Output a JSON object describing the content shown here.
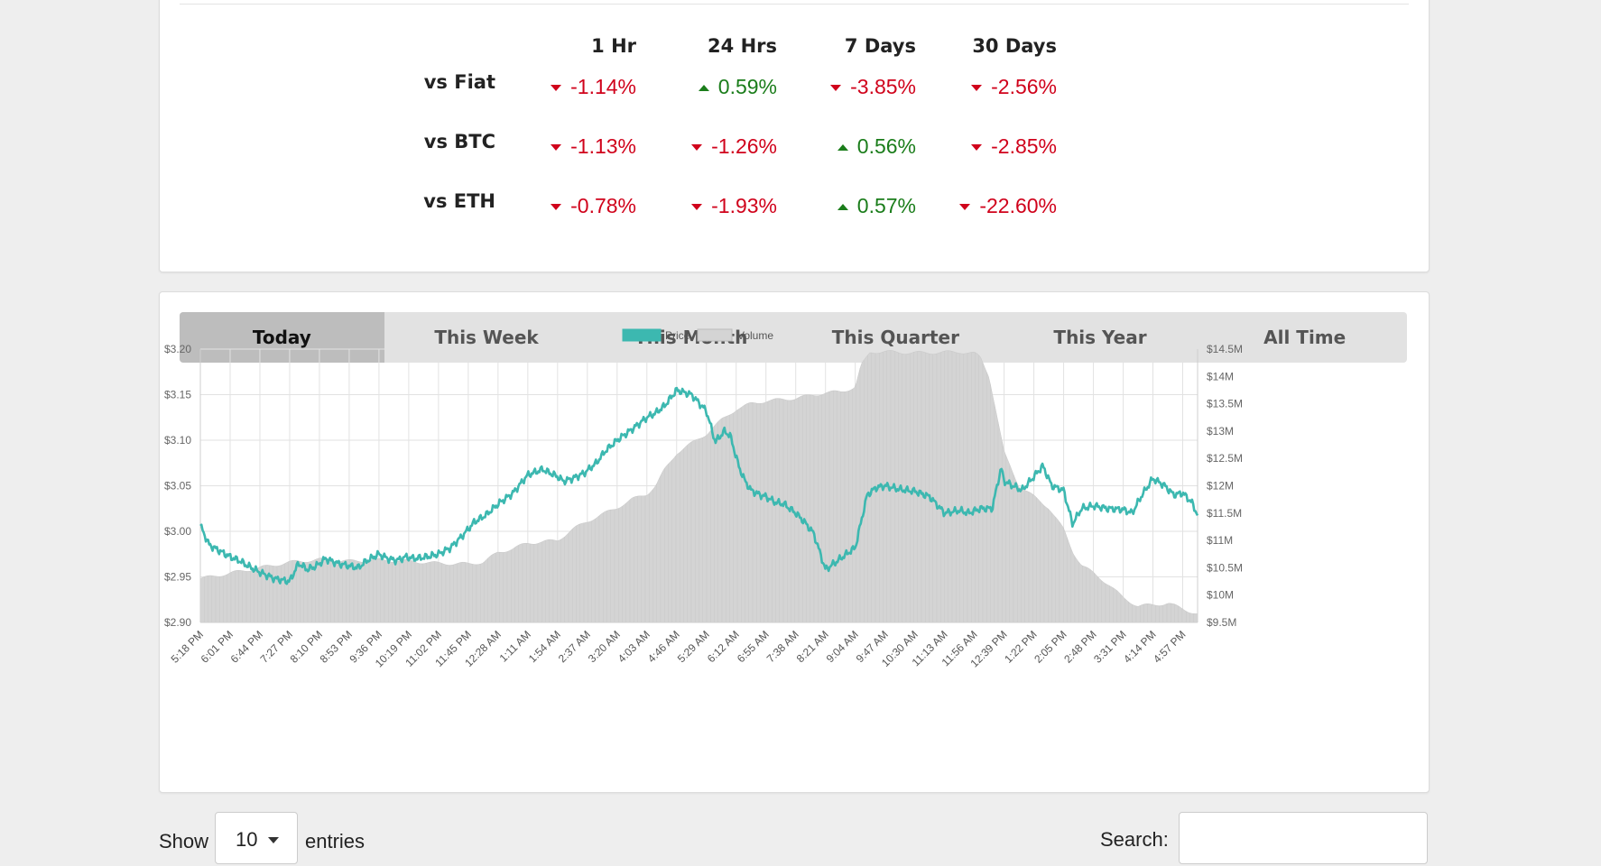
{
  "performance": {
    "columns": [
      "1 Hr",
      "24 Hrs",
      "7 Days",
      "30 Days"
    ],
    "rows": [
      {
        "label": "vs Fiat",
        "values": [
          {
            "text": "-1.14%",
            "dir": "down"
          },
          {
            "text": "0.59%",
            "dir": "up"
          },
          {
            "text": "-3.85%",
            "dir": "down"
          },
          {
            "text": "-2.56%",
            "dir": "down"
          }
        ]
      },
      {
        "label": "vs BTC",
        "values": [
          {
            "text": "-1.13%",
            "dir": "down"
          },
          {
            "text": "-1.26%",
            "dir": "down"
          },
          {
            "text": "0.56%",
            "dir": "up"
          },
          {
            "text": "-2.85%",
            "dir": "down"
          }
        ]
      },
      {
        "label": "vs ETH",
        "values": [
          {
            "text": "-0.78%",
            "dir": "down"
          },
          {
            "text": "-1.93%",
            "dir": "down"
          },
          {
            "text": "0.57%",
            "dir": "up"
          },
          {
            "text": "-22.60%",
            "dir": "down"
          }
        ]
      }
    ],
    "colors": {
      "down": "#d0021b",
      "up": "#1b7d1b"
    }
  },
  "tabs": [
    "Today",
    "This Week",
    "This Month",
    "This Quarter",
    "This Year",
    "All Time"
  ],
  "active_tab": "Today",
  "chart_data": {
    "type": "line",
    "legend": [
      "Price",
      "Volume"
    ],
    "legend_placement": "top-center",
    "grid": true,
    "colors": {
      "price": "#3cb8b0",
      "volume": "#d4d4d4"
    },
    "x_ticks": [
      "5:18 PM",
      "6:01 PM",
      "6:44 PM",
      "7:27 PM",
      "8:10 PM",
      "8:53 PM",
      "9:36 PM",
      "10:19 PM",
      "11:02 PM",
      "11:45 PM",
      "12:28 AM",
      "1:11 AM",
      "1:54 AM",
      "2:37 AM",
      "3:20 AM",
      "4:03 AM",
      "4:46 AM",
      "5:29 AM",
      "6:12 AM",
      "6:55 AM",
      "7:38 AM",
      "8:21 AM",
      "9:04 AM",
      "9:47 AM",
      "10:30 AM",
      "11:13 AM",
      "11:56 AM",
      "12:39 PM",
      "1:22 PM",
      "2:05 PM",
      "2:48 PM",
      "3:31 PM",
      "4:14 PM",
      "4:57 PM"
    ],
    "y_left": {
      "ticks": [
        "$3.20",
        "$3.15",
        "$3.10",
        "$3.05",
        "$3.00",
        "$2.95",
        "$2.90"
      ],
      "min": 2.9,
      "max": 3.2
    },
    "y_right": {
      "ticks": [
        "$14.5M",
        "$14M",
        "$13.5M",
        "$13M",
        "$12.5M",
        "$12M",
        "$11.5M",
        "$11M",
        "$10.5M",
        "$10M",
        "$9.5M"
      ],
      "min": 9.5,
      "max": 14.5
    },
    "series": [
      {
        "name": "Price",
        "axis": "left",
        "t": [
          0,
          0.3,
          1,
          1.3,
          1.6,
          2,
          2.5,
          3,
          3.3,
          3.6,
          3.9,
          4.2,
          4.6,
          5,
          5.3,
          5.6,
          6,
          6.3,
          6.6,
          6.9,
          7.2,
          7.6,
          8,
          8.4,
          8.8,
          9.2,
          9.6,
          10,
          10.5,
          11,
          11.5,
          12,
          12.2,
          12.5,
          12.9,
          13.3,
          13.6,
          14,
          14.5,
          15,
          15.3,
          15.6,
          16,
          16.5,
          17,
          17.3,
          17.6,
          17.8,
          18.1,
          18.3,
          18.5,
          18.8,
          19,
          19.3,
          19.6,
          20,
          20.3,
          20.6,
          21,
          21.3,
          21.7,
          22,
          22.4,
          22.7,
          23,
          23.5,
          24,
          24.5,
          25,
          25.5,
          25.8,
          26.2,
          26.6,
          26.9,
          27,
          27.3,
          27.6,
          28,
          28.3,
          28.6,
          29,
          29.3,
          29.6,
          30,
          30.5,
          31,
          31.3,
          31.6,
          32,
          32.4,
          32.7,
          33,
          33.3,
          33.5
        ],
        "values": [
          3.006,
          2.985,
          2.972,
          2.968,
          2.962,
          2.955,
          2.948,
          2.945,
          2.965,
          2.958,
          2.962,
          2.97,
          2.965,
          2.962,
          2.96,
          2.968,
          2.975,
          2.97,
          2.968,
          2.972,
          2.97,
          2.972,
          2.975,
          2.982,
          2.995,
          3.01,
          3.018,
          3.03,
          3.042,
          3.062,
          3.068,
          3.06,
          3.055,
          3.058,
          3.064,
          3.075,
          3.088,
          3.1,
          3.112,
          3.125,
          3.13,
          3.138,
          3.155,
          3.15,
          3.132,
          3.098,
          3.11,
          3.105,
          3.07,
          3.055,
          3.045,
          3.04,
          3.038,
          3.032,
          3.03,
          3.02,
          3.01,
          2.998,
          2.958,
          2.965,
          2.975,
          2.982,
          3.04,
          3.048,
          3.05,
          3.046,
          3.044,
          3.038,
          3.02,
          3.023,
          3.02,
          3.025,
          3.025,
          3.07,
          3.055,
          3.05,
          3.045,
          3.06,
          3.072,
          3.05,
          3.045,
          3.008,
          3.025,
          3.028,
          3.025,
          3.024,
          3.02,
          3.038,
          3.058,
          3.05,
          3.04,
          3.042,
          3.032,
          3.018
        ]
      },
      {
        "name": "Volume",
        "axis": "right",
        "t": [
          0,
          0.5,
          1,
          2,
          3,
          4,
          5,
          6,
          7,
          8,
          9,
          9.5,
          10,
          10.5,
          11,
          12,
          12.5,
          13,
          14,
          14.5,
          15,
          15.3,
          15.6,
          16,
          17,
          17.5,
          18,
          18.5,
          19,
          20,
          20.5,
          21,
          21.5,
          22,
          22.2,
          22.5,
          23,
          24,
          25,
          25.5,
          26,
          26.2,
          26.5,
          27,
          27.5,
          28,
          28.5,
          29,
          29.3,
          29.6,
          30,
          30.5,
          31,
          31.5,
          32,
          32.5,
          33,
          33.5
        ],
        "values": [
          10.3,
          10.35,
          10.4,
          10.5,
          10.6,
          10.65,
          10.62,
          10.64,
          10.62,
          10.58,
          10.57,
          10.6,
          10.78,
          10.85,
          10.95,
          11.0,
          11.2,
          11.35,
          11.6,
          11.75,
          11.85,
          12.0,
          12.3,
          12.6,
          12.95,
          13.2,
          13.4,
          13.5,
          13.55,
          13.6,
          13.65,
          13.7,
          13.72,
          13.8,
          14.2,
          14.45,
          14.45,
          14.43,
          14.44,
          14.45,
          14.42,
          14.35,
          14.0,
          12.6,
          12.0,
          11.8,
          11.6,
          11.2,
          10.8,
          10.55,
          10.4,
          10.2,
          9.95,
          9.8,
          9.82,
          9.85,
          9.75,
          9.65
        ]
      }
    ]
  },
  "table_controls": {
    "show_label": "Show",
    "length_value": "10",
    "entries_label": "entries",
    "search_label": "Search:",
    "search_value": ""
  }
}
